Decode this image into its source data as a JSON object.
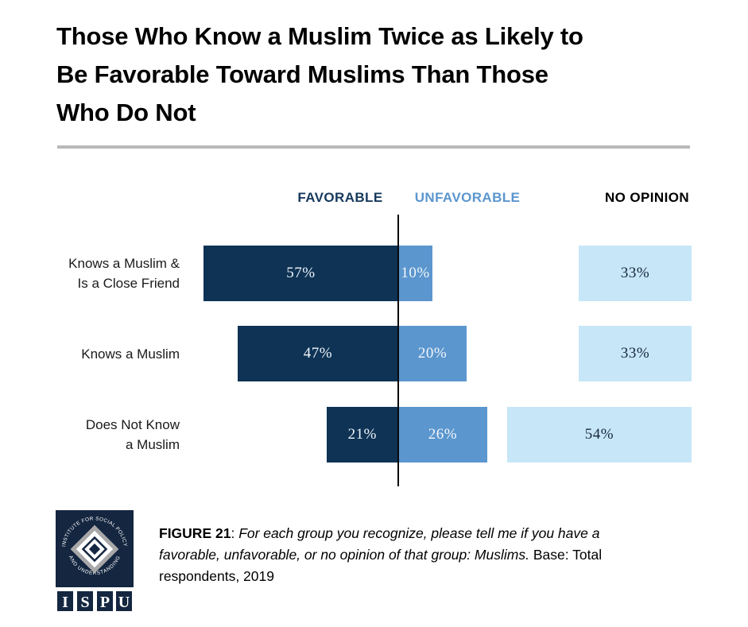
{
  "title": "Those Who Know a Muslim Twice as Likely to\nBe Favorable Toward Muslims Than Those\nWho Do Not",
  "chart_data": {
    "type": "bar",
    "orientation": "horizontal-diverging",
    "title": "Those Who Know a Muslim Twice as Likely to Be Favorable Toward Muslims Than Those Who Do Not",
    "categories": [
      "Knows a Muslim &\nIs a Close Friend",
      "Knows a Muslim",
      "Does Not Know\na Muslim"
    ],
    "series": [
      {
        "name": "FAVORABLE",
        "values": [
          57,
          47,
          21
        ],
        "color": "#0E3355",
        "label_color": "#EFF4F9"
      },
      {
        "name": "UNFAVORABLE",
        "values": [
          10,
          20,
          26
        ],
        "color": "#5B96CE",
        "label_color": "#F2F6FA"
      },
      {
        "name": "NO OPINION",
        "values": [
          33,
          33,
          54
        ],
        "color": "#C7E6F8",
        "label_color": "#16293B"
      }
    ],
    "value_suffix": "%",
    "xlim": [
      0,
      100
    ],
    "legend_position": "top",
    "grid": false
  },
  "caption": {
    "figure_label": "FIGURE 21",
    "separator": ": ",
    "question": "For each group you recognize, please tell me if you have a favorable, unfavorable, or no opinion of that group: Muslims.",
    "base": "Base: Total respondents, 2019"
  },
  "logo": {
    "arc_top": "INSTITUTE FOR SOCIAL POLICY",
    "arc_bottom": "AND UNDERSTANDING",
    "letters": [
      "I",
      "S",
      "P",
      "U"
    ]
  },
  "colors": {
    "favorable_navy": "#0E3355",
    "unfavorable_blue": "#5B96CE",
    "no_opinion_light_blue": "#C7E6F8",
    "header_navy": "#16395D",
    "header_blue": "#5B96CE",
    "text_black": "#000000",
    "divider_gray": "#B9B9B9",
    "logo_navy": "#142640",
    "logo_silver": "#A8A8A8",
    "axis_line_black": "#0A0A0A"
  }
}
